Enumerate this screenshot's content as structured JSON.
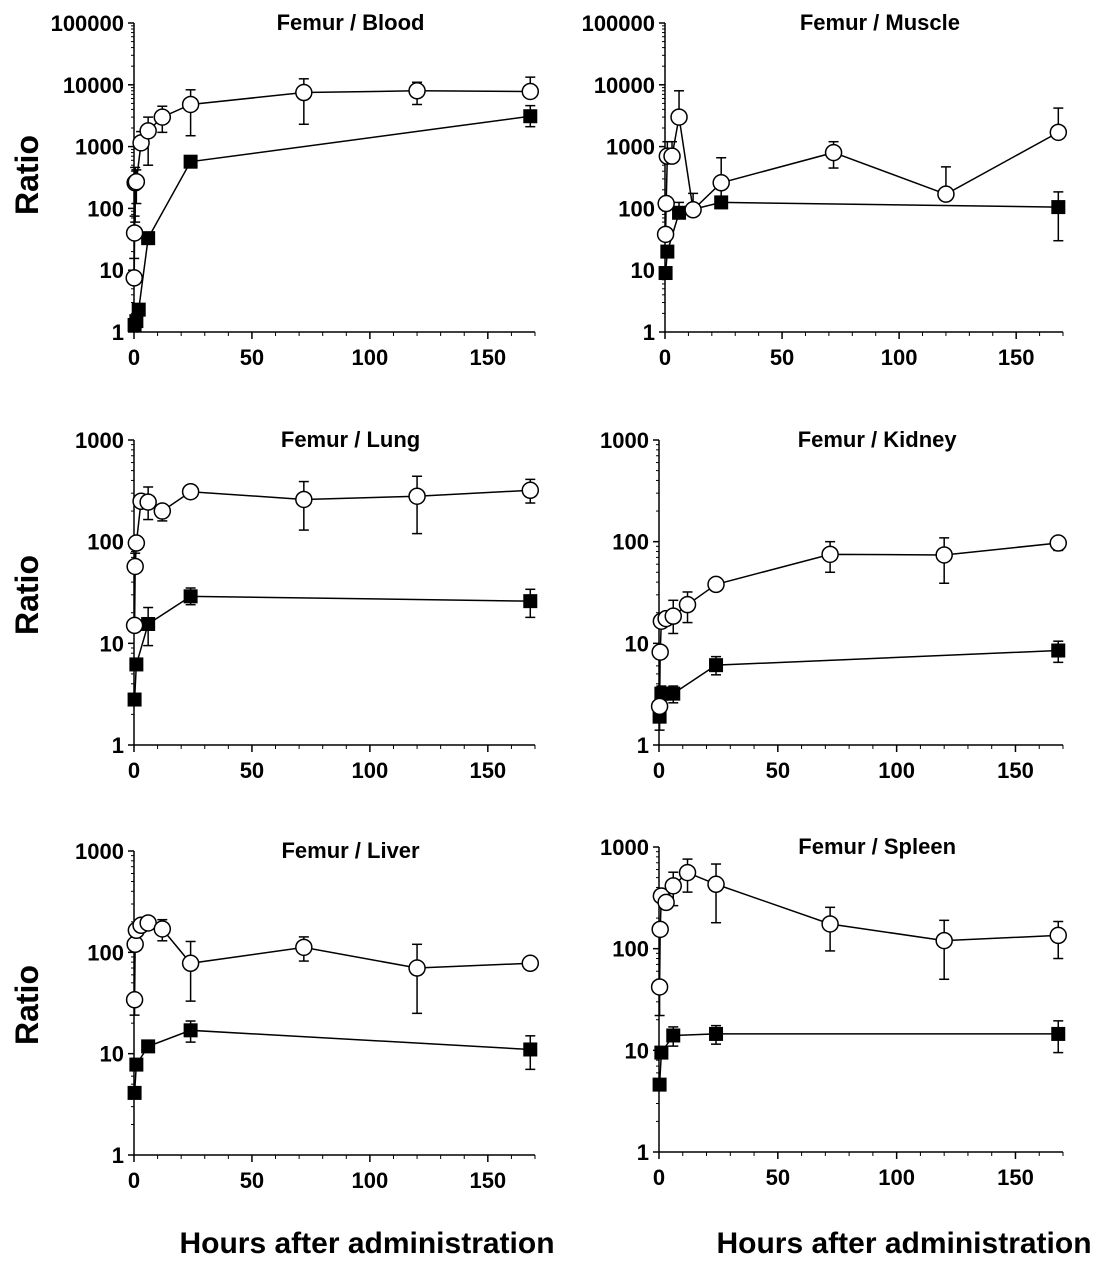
{
  "figure": {
    "y_axis_title": "Ratio",
    "x_axis_title": "Hours after administration",
    "marker_color": "#000000",
    "open_marker_fill": "#ffffff"
  },
  "chart_data": [
    {
      "type": "scatter",
      "title": "Femur / Blood",
      "xlabel": "Hours after administration",
      "ylabel": "Ratio",
      "xlim": [
        0,
        170
      ],
      "ylim": [
        1,
        100000
      ],
      "yscale": "log",
      "x_ticks": [
        "0",
        "50",
        "100",
        "150"
      ],
      "y_ticks": [
        "1",
        "10",
        "100",
        "1000",
        "10000",
        "100000"
      ],
      "grid": false,
      "legend": "none",
      "series": [
        {
          "marker": "open-circle",
          "x": [
            0.08,
            0.25,
            0.5,
            1,
            3,
            6,
            12,
            24,
            72,
            120,
            168
          ],
          "y": [
            7.5,
            40,
            260,
            270,
            1150,
            1800,
            3000,
            4800,
            7500,
            8000,
            7800
          ],
          "err_up": [
            8,
            35,
            200,
            150,
            600,
            1200,
            1500,
            3500,
            5000,
            3000,
            5500
          ],
          "err_down": [
            0,
            0,
            200,
            150,
            0,
            1300,
            1300,
            3300,
            5200,
            3200,
            0
          ]
        },
        {
          "marker": "filled-square",
          "x": [
            0.25,
            1,
            2,
            6,
            24,
            168
          ],
          "y": [
            1.3,
            1.5,
            2.3,
            33,
            570,
            3100
          ],
          "err_up": [
            0,
            0,
            0,
            0,
            0,
            1500
          ],
          "err_down": [
            0,
            0,
            0,
            0,
            0,
            1000
          ]
        }
      ]
    },
    {
      "type": "scatter",
      "title": "Femur / Muscle",
      "xlabel": "Hours after administration",
      "ylabel": "Ratio",
      "xlim": [
        0,
        170
      ],
      "ylim": [
        1,
        100000
      ],
      "yscale": "log",
      "x_ticks": [
        "0",
        "50",
        "100",
        "150"
      ],
      "y_ticks": [
        "1",
        "10",
        "100",
        "1000",
        "10000",
        "100000"
      ],
      "grid": false,
      "legend": "none",
      "series": [
        {
          "marker": "open-circle",
          "x": [
            0.25,
            0.5,
            1,
            3,
            6,
            12,
            24,
            72,
            120,
            168
          ],
          "y": [
            38,
            120,
            700,
            700,
            3000,
            95,
            260,
            800,
            170,
            1700
          ],
          "err_up": [
            0,
            0,
            500,
            500,
            5000,
            80,
            400,
            400,
            300,
            2500
          ],
          "err_down": [
            0,
            0,
            0,
            0,
            0,
            0,
            0,
            350,
            0,
            0
          ]
        },
        {
          "marker": "filled-square",
          "x": [
            0.25,
            1,
            6,
            24,
            168
          ],
          "y": [
            9,
            20,
            85,
            125,
            105
          ],
          "err_up": [
            0,
            0,
            40,
            80,
            80
          ],
          "err_down": [
            0,
            0,
            0,
            0,
            75
          ]
        }
      ]
    },
    {
      "type": "scatter",
      "title": "Femur / Lung",
      "xlabel": "Hours after administration",
      "ylabel": "Ratio",
      "xlim": [
        0,
        170
      ],
      "ylim": [
        1,
        1000
      ],
      "yscale": "log",
      "x_ticks": [
        "0",
        "50",
        "100",
        "150"
      ],
      "y_ticks": [
        "1",
        "10",
        "100",
        "1000"
      ],
      "grid": false,
      "legend": "none",
      "series": [
        {
          "marker": "open-circle",
          "x": [
            0.25,
            0.5,
            1,
            3,
            6,
            12,
            24,
            72,
            120,
            168
          ],
          "y": [
            15,
            57,
            97,
            250,
            245,
            200,
            310,
            260,
            280,
            320
          ],
          "err_up": [
            0,
            20,
            0,
            0,
            100,
            30,
            50,
            130,
            160,
            90
          ],
          "err_down": [
            0,
            0,
            0,
            0,
            80,
            40,
            40,
            130,
            160,
            80
          ]
        },
        {
          "marker": "filled-square",
          "x": [
            0.25,
            1,
            6,
            24,
            168
          ],
          "y": [
            2.8,
            6.2,
            15.5,
            29,
            26
          ],
          "err_up": [
            0,
            0,
            7,
            6,
            8
          ],
          "err_down": [
            0,
            0,
            6,
            5,
            8
          ]
        }
      ]
    },
    {
      "type": "scatter",
      "title": "Femur / Kidney",
      "xlabel": "Hours after administration",
      "ylabel": "Ratio",
      "xlim": [
        0,
        170
      ],
      "ylim": [
        1,
        1000
      ],
      "yscale": "log",
      "x_ticks": [
        "0",
        "50",
        "100",
        "150"
      ],
      "y_ticks": [
        "1",
        "10",
        "100",
        "1000"
      ],
      "grid": false,
      "legend": "none",
      "series": [
        {
          "marker": "open-circle",
          "x": [
            0.25,
            0.5,
            1,
            3,
            6,
            12,
            24,
            72,
            120,
            168
          ],
          "y": [
            2.4,
            8.2,
            16.5,
            17.5,
            18.5,
            24,
            38,
            75,
            74,
            97
          ],
          "err_up": [
            0,
            0,
            0,
            0,
            8,
            8,
            6,
            25,
            35,
            15
          ],
          "err_down": [
            0,
            0,
            0,
            0,
            6,
            8,
            5,
            25,
            35,
            15
          ]
        },
        {
          "marker": "filled-square",
          "x": [
            0.25,
            1,
            2,
            6,
            24,
            168
          ],
          "y": [
            1.9,
            3.2,
            3.2,
            3.2,
            6.1,
            8.5
          ],
          "err_up": [
            0,
            0.6,
            0,
            0.6,
            1.3,
            2
          ],
          "err_down": [
            0.5,
            0,
            0,
            0.6,
            1.2,
            2
          ]
        }
      ]
    },
    {
      "type": "scatter",
      "title": "Femur / Liver",
      "xlabel": "Hours after administration",
      "ylabel": "Ratio",
      "xlim": [
        0,
        170
      ],
      "ylim": [
        1,
        1000
      ],
      "yscale": "log",
      "x_ticks": [
        "0",
        "50",
        "100",
        "150"
      ],
      "y_ticks": [
        "1",
        "10",
        "100",
        "1000"
      ],
      "grid": false,
      "legend": "none",
      "series": [
        {
          "marker": "open-circle",
          "x": [
            0.25,
            0.5,
            1,
            3,
            6,
            12,
            24,
            72,
            120,
            168
          ],
          "y": [
            34,
            120,
            165,
            185,
            195,
            170,
            78,
            112,
            70,
            78
          ],
          "err_up": [
            0,
            0,
            0,
            0,
            0,
            40,
            50,
            30,
            50,
            0
          ],
          "err_down": [
            10,
            0,
            0,
            0,
            0,
            40,
            45,
            30,
            45,
            0
          ]
        },
        {
          "marker": "filled-square",
          "x": [
            0.25,
            1,
            6,
            24,
            168
          ],
          "y": [
            4.1,
            7.8,
            11.8,
            17,
            11
          ],
          "err_up": [
            0,
            0,
            0,
            4,
            4
          ],
          "err_down": [
            0,
            0,
            0,
            4,
            4
          ]
        }
      ]
    },
    {
      "type": "scatter",
      "title": "Femur / Spleen",
      "xlabel": "Hours after administration",
      "ylabel": "Ratio",
      "xlim": [
        0,
        170
      ],
      "ylim": [
        1,
        1000
      ],
      "yscale": "log",
      "x_ticks": [
        "0",
        "50",
        "100",
        "150"
      ],
      "y_ticks": [
        "1",
        "10",
        "100",
        "1000"
      ],
      "grid": false,
      "legend": "none",
      "series": [
        {
          "marker": "open-circle",
          "x": [
            0.25,
            0.5,
            1,
            3,
            6,
            12,
            24,
            72,
            120,
            168
          ],
          "y": [
            42,
            155,
            330,
            285,
            415,
            560,
            430,
            175,
            120,
            135
          ],
          "err_up": [
            0,
            0,
            0,
            0,
            150,
            200,
            250,
            80,
            70,
            50
          ],
          "err_down": [
            20,
            0,
            0,
            0,
            150,
            200,
            250,
            80,
            70,
            55
          ]
        },
        {
          "marker": "filled-square",
          "x": [
            0.25,
            1,
            6,
            24,
            168
          ],
          "y": [
            4.6,
            9.5,
            14,
            14.5,
            14.5
          ],
          "err_up": [
            0,
            0,
            3,
            3,
            5
          ],
          "err_down": [
            0,
            0,
            3,
            3,
            5
          ]
        }
      ]
    }
  ]
}
